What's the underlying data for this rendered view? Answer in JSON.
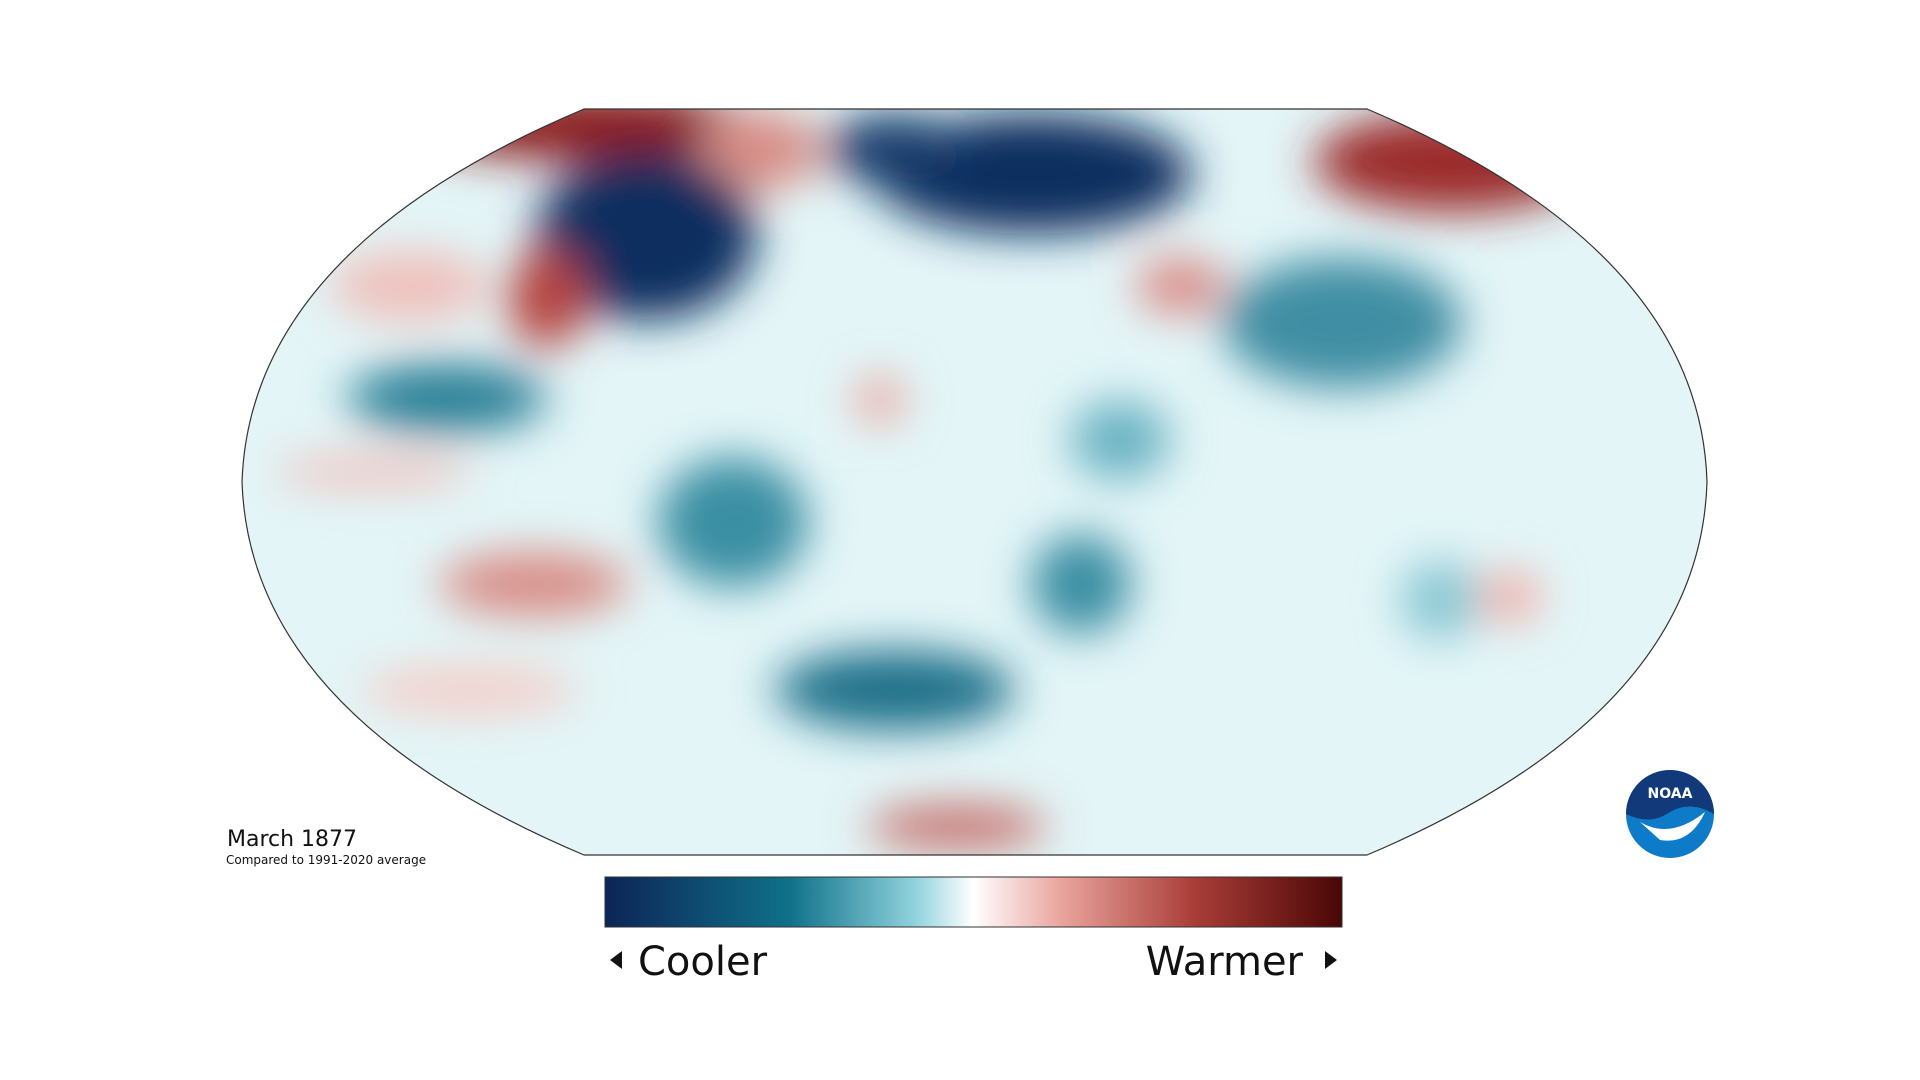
{
  "title": "March 1877",
  "subtitle": "Compared to 1991-2020 average",
  "legend": {
    "low": "Cooler",
    "high": "Warmer"
  },
  "logo": "NOAA"
}
